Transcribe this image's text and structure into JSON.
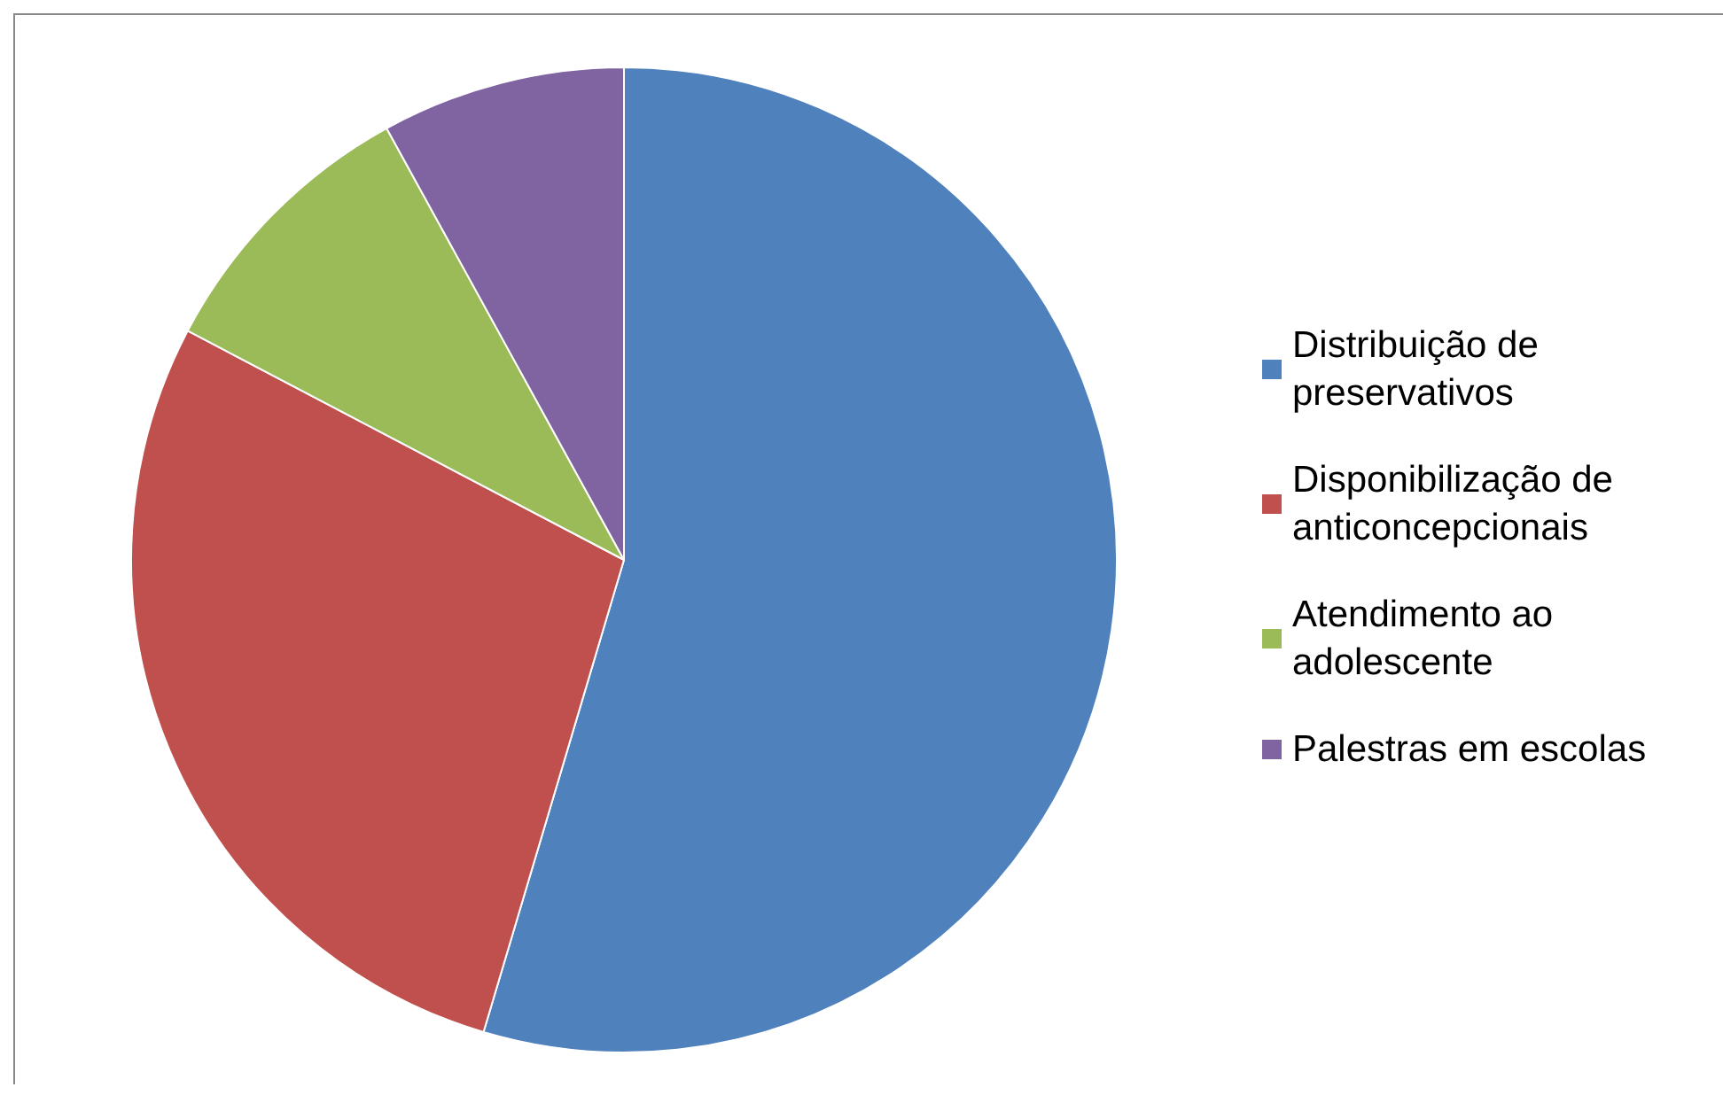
{
  "chart_data": {
    "type": "pie",
    "categories": [
      "Distribuição de preservativos",
      "Disponibilização de anticoncepcionais",
      "Atendimento ao adolescente",
      "Palestras em escolas"
    ],
    "values": [
      54.6,
      28.1,
      9.3,
      8.0
    ],
    "colors": [
      "#4f81bd",
      "#c0504d",
      "#9bbb59",
      "#8064a2"
    ],
    "legend": "right"
  }
}
